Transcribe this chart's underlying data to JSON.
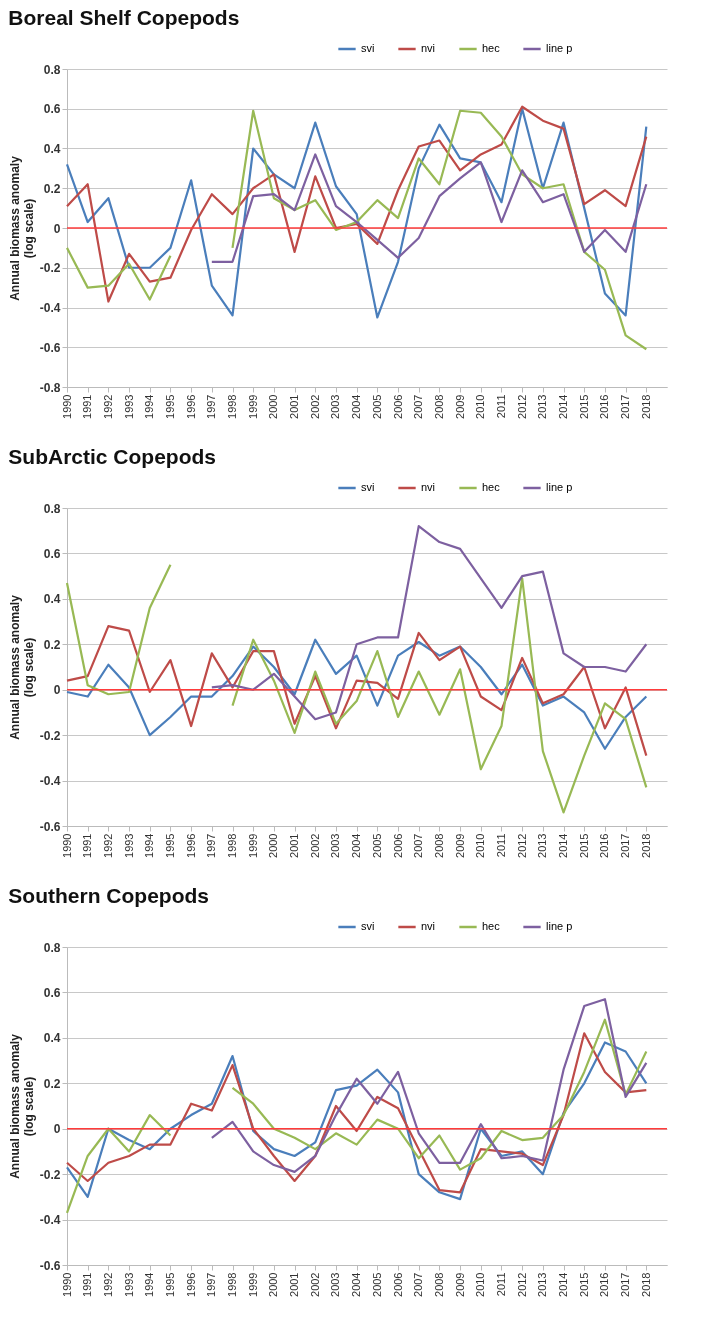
{
  "chart_data": [
    {
      "type": "line",
      "title": "Boreal Shelf Copepods",
      "ylabel": "Annual biomass anomaly\n(log scale)",
      "categories": [
        "1990",
        "1991",
        "1992",
        "1993",
        "1994",
        "1995",
        "1996",
        "1997",
        "1998",
        "1999",
        "2000",
        "2001",
        "2002",
        "2003",
        "2004",
        "2005",
        "2006",
        "2007",
        "2008",
        "2009",
        "2010",
        "2011",
        "2012",
        "2013",
        "2014",
        "2015",
        "2016",
        "2017",
        "2018"
      ],
      "series": [
        {
          "name": "svi",
          "color": "#4a7ebb",
          "values": [
            0.32,
            0.03,
            0.15,
            -0.2,
            -0.2,
            -0.1,
            0.24,
            -0.29,
            -0.44,
            0.4,
            0.27,
            0.2,
            0.53,
            0.21,
            0.07,
            -0.45,
            -0.17,
            0.3,
            0.52,
            0.35,
            0.33,
            0.13,
            0.6,
            0.2,
            0.53,
            0.1,
            -0.33,
            -0.44,
            0.51
          ]
        },
        {
          "name": "nvi",
          "color": "#be4b48",
          "values": [
            0.11,
            0.22,
            -0.37,
            -0.13,
            -0.27,
            -0.25,
            -0.01,
            0.17,
            0.07,
            0.2,
            0.27,
            -0.12,
            0.26,
            0.0,
            0.02,
            -0.08,
            0.19,
            0.41,
            0.44,
            0.29,
            0.37,
            0.42,
            0.61,
            0.54,
            0.5,
            0.12,
            0.19,
            0.11,
            0.46
          ]
        },
        {
          "name": "hec",
          "color": "#98b954",
          "values": [
            -0.1,
            -0.3,
            -0.29,
            -0.18,
            -0.36,
            -0.14,
            null,
            null,
            -0.1,
            0.59,
            0.15,
            0.09,
            0.14,
            -0.01,
            0.03,
            0.14,
            0.05,
            0.35,
            0.22,
            0.59,
            0.58,
            0.46,
            0.27,
            0.2,
            0.22,
            -0.12,
            -0.21,
            -0.54,
            -0.61
          ]
        },
        {
          "name": "line p",
          "color": "#7d60a0",
          "values": [
            null,
            null,
            null,
            null,
            null,
            null,
            null,
            -0.17,
            -0.17,
            0.16,
            0.17,
            0.09,
            0.37,
            0.11,
            0.03,
            -0.06,
            -0.15,
            -0.05,
            0.16,
            0.25,
            0.33,
            0.03,
            0.29,
            0.13,
            0.17,
            -0.12,
            -0.01,
            -0.12,
            0.22
          ]
        }
      ],
      "ylim": [
        -0.8,
        0.8
      ],
      "yticks": [
        -0.8,
        -0.6,
        -0.4,
        -0.2,
        0,
        0.2,
        0.4,
        0.6,
        0.8
      ],
      "ref_lines": [
        {
          "axis": "y",
          "value": 0,
          "color": "#ff3b3b"
        }
      ],
      "grid": "y",
      "legend": "top right",
      "marker": "none",
      "line_style": "solid"
    },
    {
      "type": "line",
      "title": "SubArctic Copepods",
      "ylabel": "Annual biomass anomaly\n(log scale)",
      "categories": [
        "1990",
        "1991",
        "1992",
        "1993",
        "1994",
        "1995",
        "1996",
        "1997",
        "1998",
        "1999",
        "2000",
        "2001",
        "2002",
        "2003",
        "2004",
        "2005",
        "2006",
        "2007",
        "2008",
        "2009",
        "2010",
        "2011",
        "2012",
        "2013",
        "2014",
        "2015",
        "2016",
        "2017",
        "2018"
      ],
      "series": [
        {
          "name": "svi",
          "color": "#4a7ebb",
          "values": [
            -0.01,
            -0.03,
            0.11,
            0.01,
            -0.2,
            -0.12,
            -0.03,
            -0.03,
            0.06,
            0.19,
            0.1,
            -0.02,
            0.22,
            0.07,
            0.15,
            -0.07,
            0.15,
            0.21,
            0.15,
            0.19,
            0.1,
            -0.02,
            0.11,
            -0.07,
            -0.03,
            -0.1,
            -0.26,
            -0.12,
            -0.03
          ]
        },
        {
          "name": "nvi",
          "color": "#be4b48",
          "values": [
            0.04,
            0.06,
            0.28,
            0.26,
            -0.01,
            0.13,
            -0.16,
            0.16,
            0.01,
            0.17,
            0.17,
            -0.15,
            0.06,
            -0.17,
            0.04,
            0.03,
            -0.04,
            0.25,
            0.13,
            0.19,
            -0.03,
            -0.09,
            0.14,
            -0.06,
            -0.02,
            0.1,
            -0.17,
            0.01,
            -0.29
          ]
        },
        {
          "name": "hec",
          "color": "#98b954",
          "values": [
            0.47,
            0.02,
            -0.02,
            -0.01,
            0.36,
            0.55,
            null,
            null,
            -0.07,
            0.22,
            0.04,
            -0.19,
            0.08,
            -0.15,
            -0.05,
            0.17,
            -0.12,
            0.08,
            -0.11,
            0.09,
            -0.35,
            -0.16,
            0.49,
            -0.27,
            -0.54,
            -0.29,
            -0.06,
            -0.13,
            -0.43
          ]
        },
        {
          "name": "line p",
          "color": "#7d60a0",
          "values": [
            null,
            null,
            null,
            null,
            null,
            null,
            null,
            0.01,
            0.02,
            0.0,
            0.07,
            -0.03,
            -0.13,
            -0.1,
            0.2,
            0.23,
            0.23,
            0.72,
            0.65,
            0.62,
            0.49,
            0.36,
            0.5,
            0.52,
            0.16,
            0.1,
            0.1,
            0.08,
            0.2
          ]
        }
      ],
      "ylim": [
        -0.6,
        0.8
      ],
      "yticks": [
        -0.6,
        -0.4,
        -0.2,
        0,
        0.2,
        0.4,
        0.6,
        0.8
      ],
      "ref_lines": [
        {
          "axis": "y",
          "value": 0,
          "color": "#ff3b3b"
        }
      ],
      "grid": "y",
      "legend": "top right",
      "marker": "none",
      "line_style": "solid"
    },
    {
      "type": "line",
      "title": "Southern Copepods",
      "ylabel": "Annual biomass anomaly\n(log scale)",
      "categories": [
        "1990",
        "1991",
        "1992",
        "1993",
        "1994",
        "1995",
        "1996",
        "1997",
        "1998",
        "1999",
        "2000",
        "2001",
        "2002",
        "2003",
        "2004",
        "2005",
        "2006",
        "2007",
        "2008",
        "2009",
        "2010",
        "2011",
        "2012",
        "2013",
        "2014",
        "2015",
        "2016",
        "2017",
        "2018"
      ],
      "series": [
        {
          "name": "svi",
          "color": "#4a7ebb",
          "values": [
            -0.17,
            -0.3,
            0.0,
            -0.05,
            -0.09,
            0.0,
            0.06,
            0.11,
            0.32,
            -0.01,
            -0.09,
            -0.12,
            -0.06,
            0.17,
            0.19,
            0.26,
            0.16,
            -0.2,
            -0.28,
            -0.31,
            0.0,
            -0.12,
            -0.1,
            -0.2,
            0.07,
            0.2,
            0.38,
            0.34,
            0.2
          ]
        },
        {
          "name": "nvi",
          "color": "#be4b48",
          "values": [
            -0.15,
            -0.23,
            -0.15,
            -0.12,
            -0.07,
            -0.07,
            0.11,
            0.08,
            0.28,
            0.0,
            -0.12,
            -0.23,
            -0.12,
            0.1,
            -0.01,
            0.14,
            0.09,
            -0.09,
            -0.27,
            -0.28,
            -0.09,
            -0.1,
            -0.11,
            -0.16,
            0.06,
            0.42,
            0.25,
            0.16,
            0.17
          ]
        },
        {
          "name": "hec",
          "color": "#98b954",
          "values": [
            -0.37,
            -0.12,
            0.0,
            -0.1,
            0.06,
            -0.03,
            null,
            null,
            0.18,
            0.11,
            0.0,
            -0.04,
            -0.09,
            -0.02,
            -0.07,
            0.04,
            0.0,
            -0.13,
            -0.03,
            -0.18,
            -0.13,
            -0.01,
            -0.05,
            -0.04,
            0.06,
            0.25,
            0.48,
            0.15,
            0.34
          ]
        },
        {
          "name": "line p",
          "color": "#7d60a0",
          "values": [
            null,
            null,
            null,
            null,
            null,
            null,
            null,
            -0.04,
            0.03,
            -0.1,
            -0.16,
            -0.19,
            -0.12,
            0.06,
            0.22,
            0.11,
            0.25,
            -0.02,
            -0.15,
            -0.15,
            0.02,
            -0.13,
            -0.12,
            -0.14,
            0.26,
            0.54,
            0.57,
            0.14,
            0.29
          ]
        }
      ],
      "ylim": [
        -0.6,
        0.8
      ],
      "yticks": [
        -0.6,
        -0.4,
        -0.2,
        0,
        0.2,
        0.4,
        0.6,
        0.8
      ],
      "ref_lines": [
        {
          "axis": "y",
          "value": 0,
          "color": "#ff3b3b"
        }
      ],
      "grid": "y",
      "legend": "top right",
      "marker": "none",
      "line_style": "solid"
    }
  ]
}
